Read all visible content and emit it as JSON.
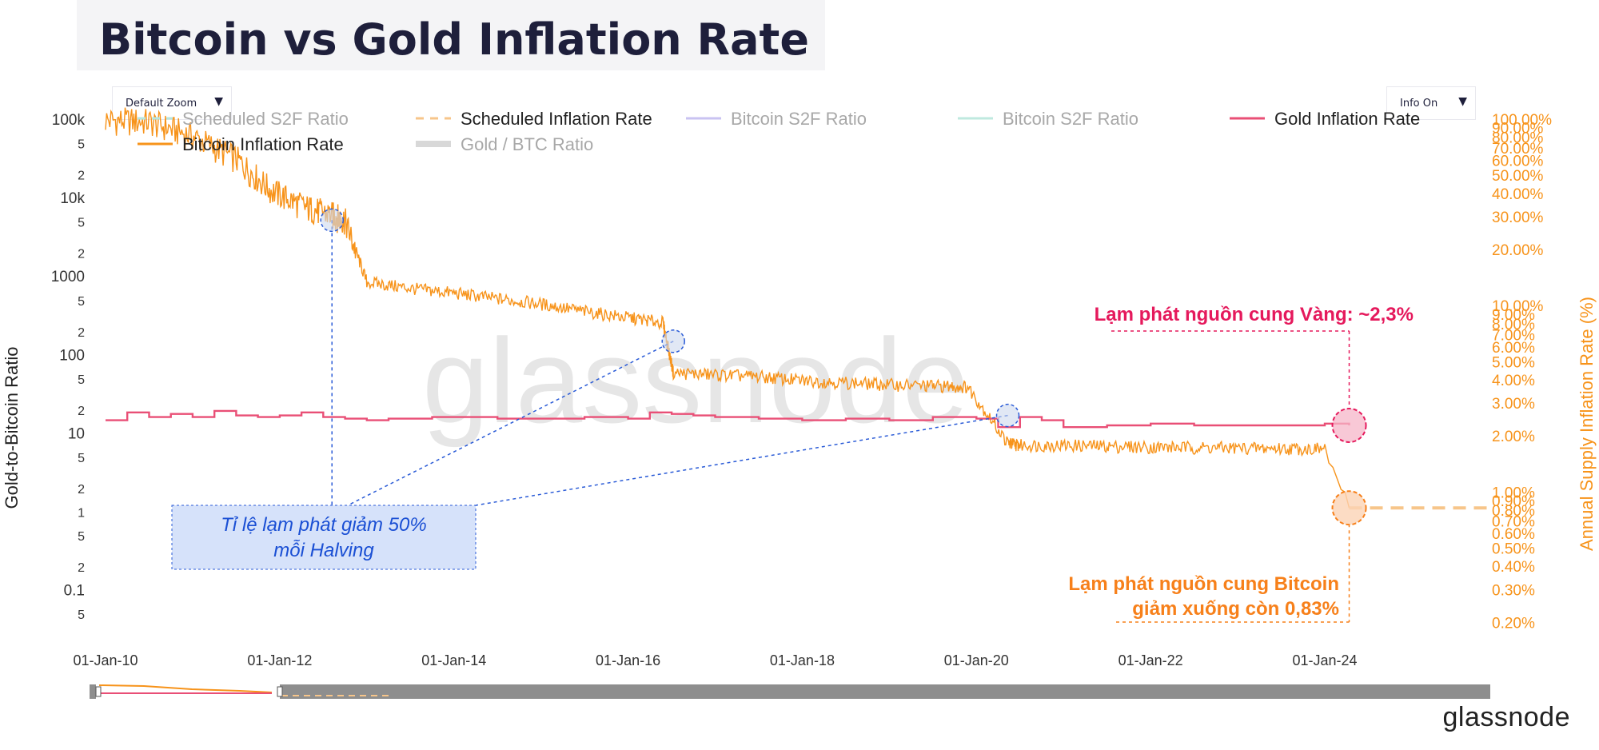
{
  "chart_data": {
    "type": "line",
    "title": "Bitcoin vs Gold Inflation Rate",
    "left_axis": {
      "label": "Gold-to-Bitcoin Ratio",
      "scale": "log",
      "range": [
        0.03,
        100000
      ],
      "tick_labels": [
        {
          "v": 100000,
          "t": "100k"
        },
        {
          "v": 50000,
          "t": "5"
        },
        {
          "v": 20000,
          "t": "2"
        },
        {
          "v": 10000,
          "t": "10k"
        },
        {
          "v": 5000,
          "t": "5"
        },
        {
          "v": 2000,
          "t": "2"
        },
        {
          "v": 1000,
          "t": "1000"
        },
        {
          "v": 500,
          "t": "5"
        },
        {
          "v": 200,
          "t": "2"
        },
        {
          "v": 100,
          "t": "100"
        },
        {
          "v": 50,
          "t": "5"
        },
        {
          "v": 20,
          "t": "2"
        },
        {
          "v": 10,
          "t": "10"
        },
        {
          "v": 5,
          "t": "5"
        },
        {
          "v": 2,
          "t": "2"
        },
        {
          "v": 1,
          "t": "1"
        },
        {
          "v": 0.5,
          "t": "5"
        },
        {
          "v": 0.2,
          "t": "2"
        },
        {
          "v": 0.1,
          "t": "0.1"
        },
        {
          "v": 0.05,
          "t": "5"
        }
      ]
    },
    "right_axis": {
      "label": "Annual Supply Inflation Rate (%)",
      "scale": "log",
      "range": [
        0.18,
        100
      ],
      "tick_labels": [
        {
          "v": 100,
          "t": "100.00%"
        },
        {
          "v": 90,
          "t": "90.00%"
        },
        {
          "v": 80,
          "t": "80.00%"
        },
        {
          "v": 70,
          "t": "70.00%"
        },
        {
          "v": 60,
          "t": "60.00%"
        },
        {
          "v": 50,
          "t": "50.00%"
        },
        {
          "v": 40,
          "t": "40.00%"
        },
        {
          "v": 30,
          "t": "30.00%"
        },
        {
          "v": 20,
          "t": "20.00%"
        },
        {
          "v": 10,
          "t": "10.00%"
        },
        {
          "v": 9,
          "t": "9.00%"
        },
        {
          "v": 8,
          "t": "8.00%"
        },
        {
          "v": 7,
          "t": "7.00%"
        },
        {
          "v": 6,
          "t": "6.00%"
        },
        {
          "v": 5,
          "t": "5.00%"
        },
        {
          "v": 4,
          "t": "4.00%"
        },
        {
          "v": 3,
          "t": "3.00%"
        },
        {
          "v": 2,
          "t": "2.00%"
        },
        {
          "v": 1,
          "t": "1.00%"
        },
        {
          "v": 0.9,
          "t": "0.90%"
        },
        {
          "v": 0.8,
          "t": "0.80%"
        },
        {
          "v": 0.7,
          "t": "0.70%"
        },
        {
          "v": 0.6,
          "t": "0.60%"
        },
        {
          "v": 0.5,
          "t": "0.50%"
        },
        {
          "v": 0.4,
          "t": "0.40%"
        },
        {
          "v": 0.3,
          "t": "0.30%"
        },
        {
          "v": 0.2,
          "t": "0.20%"
        }
      ]
    },
    "x_axis": {
      "range": [
        2010.0,
        2025.9
      ],
      "tick_labels": [
        {
          "v": 2010,
          "t": "01-Jan-10"
        },
        {
          "v": 2012,
          "t": "01-Jan-12"
        },
        {
          "v": 2014,
          "t": "01-Jan-14"
        },
        {
          "v": 2016,
          "t": "01-Jan-16"
        },
        {
          "v": 2018,
          "t": "01-Jan-18"
        },
        {
          "v": 2020,
          "t": "01-Jan-20"
        },
        {
          "v": 2022,
          "t": "01-Jan-22"
        },
        {
          "v": 2024,
          "t": "01-Jan-24"
        }
      ]
    },
    "legend": {
      "placement": "top",
      "items": [
        {
          "name": "Scheduled S2F Ratio",
          "style": "dashed",
          "color": "#b6e6df",
          "active": false
        },
        {
          "name": "Scheduled Inflation Rate",
          "style": "dashed",
          "color": "#f7c58a",
          "active": true
        },
        {
          "name": "Bitcoin S2F Ratio",
          "style": "solid",
          "color": "#c9c3f2",
          "active": false
        },
        {
          "name": "Bitcoin S2F Ratio",
          "style": "solid",
          "color": "#bfe9df",
          "active": false
        },
        {
          "name": "Gold Inflation Rate",
          "style": "solid",
          "color": "#e94f76",
          "active": true
        },
        {
          "name": "Bitcoin Inflation Rate",
          "style": "solid",
          "color": "#f7931a",
          "active": true
        },
        {
          "name": "Gold / BTC Ratio",
          "style": "thick",
          "color": "#d8d8d8",
          "active": false
        }
      ]
    },
    "series": [
      {
        "name": "Bitcoin Inflation Rate",
        "axis": "right",
        "color": "#f7931a",
        "x": [
          2010.0,
          2010.5,
          2011.0,
          2011.5,
          2011.9,
          2012.3,
          2012.6,
          2012.75,
          2013.0,
          2013.5,
          2014.0,
          2014.5,
          2015.0,
          2015.5,
          2016.0,
          2016.4,
          2016.52,
          2017.0,
          2017.5,
          2018.0,
          2018.5,
          2019.0,
          2019.5,
          2019.9,
          2020.36,
          2020.5,
          2021.0,
          2021.5,
          2022.0,
          2022.5,
          2023.0,
          2023.5,
          2024.0,
          2024.28
        ],
        "values": [
          100,
          98,
          82,
          62,
          42,
          34,
          31,
          29,
          13.5,
          12.5,
          11.8,
          11.0,
          10.3,
          9.4,
          8.7,
          8.2,
          4.4,
          4.3,
          4.2,
          4.0,
          3.9,
          3.8,
          3.75,
          3.7,
          1.85,
          1.8,
          1.8,
          1.78,
          1.76,
          1.75,
          1.74,
          1.73,
          1.72,
          0.83
        ]
      },
      {
        "name": "Gold Inflation Rate",
        "axis": "right",
        "color": "#e94f76",
        "x": [
          2010.0,
          2010.25,
          2010.5,
          2010.75,
          2011.0,
          2011.25,
          2011.5,
          2011.75,
          2012.0,
          2012.25,
          2012.5,
          2012.75,
          2013.0,
          2013.25,
          2013.5,
          2013.75,
          2014.0,
          2014.5,
          2015.0,
          2015.5,
          2016.0,
          2016.25,
          2016.5,
          2016.75,
          2017.0,
          2017.5,
          2018.0,
          2018.5,
          2019.0,
          2019.5,
          2020.0,
          2020.25,
          2020.5,
          2020.75,
          2021.0,
          2021.5,
          2022.0,
          2022.5,
          2023.0,
          2023.5,
          2024.0,
          2024.28
        ],
        "values": [
          2.45,
          2.7,
          2.55,
          2.65,
          2.55,
          2.75,
          2.6,
          2.55,
          2.6,
          2.7,
          2.55,
          2.5,
          2.45,
          2.5,
          2.5,
          2.55,
          2.55,
          2.5,
          2.5,
          2.55,
          2.5,
          2.7,
          2.65,
          2.6,
          2.55,
          2.5,
          2.45,
          2.5,
          2.45,
          2.55,
          2.5,
          2.25,
          2.55,
          2.45,
          2.25,
          2.3,
          2.35,
          2.3,
          2.3,
          2.3,
          2.35,
          2.3
        ]
      },
      {
        "name": "Scheduled Inflation Rate",
        "axis": "right",
        "color": "#f7c58a",
        "x": [
          2024.28,
          2025.9
        ],
        "values": [
          0.83,
          0.83
        ]
      }
    ]
  },
  "controls": {
    "zoom_label": "Default Zoom",
    "info_label": "Info On",
    "arrow_glyph": "▼"
  },
  "annotations": {
    "gold_note": "Lạm phát nguồn cung Vàng: ~2,3%",
    "btc_note_line1": "Lạm phát nguồn cung Bitcoin",
    "btc_note_line2": "giảm xuống còn 0,83%",
    "halving_line1": "Tỉ lệ lạm phát giảm 50%",
    "halving_line2": "mỗi Halving",
    "gold_color": "#e5195c",
    "btc_color": "#f7801a",
    "halving_color": "#2a5bd7"
  },
  "watermark": "glassnode",
  "brand": "glassnode"
}
